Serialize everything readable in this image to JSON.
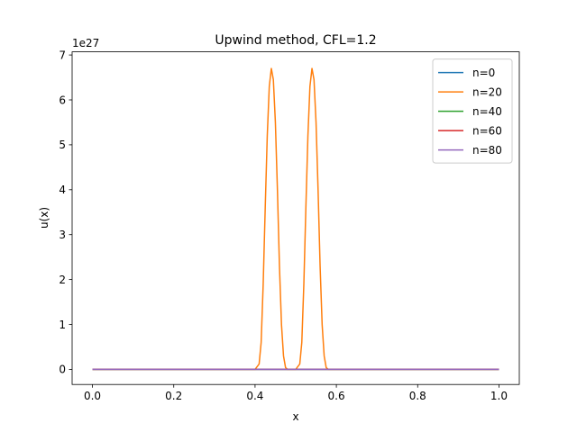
{
  "chart_data": {
    "type": "line",
    "title": "Upwind method, CFL=1.2",
    "xlabel": "x",
    "ylabel": "u(x)",
    "y_offset_label": "1e27",
    "y_scale_factor": 1e+27,
    "xlim": [
      -0.05,
      1.05
    ],
    "ylim": [
      -0.336,
      7.07
    ],
    "grid": false,
    "legend_position": "top-right",
    "x_ticks": [
      0.0,
      0.2,
      0.4,
      0.6,
      0.8,
      1.0
    ],
    "x_tick_labels": [
      "0.0",
      "0.2",
      "0.4",
      "0.6",
      "0.8",
      "1.0"
    ],
    "y_ticks": [
      0,
      1,
      2,
      3,
      4,
      5,
      6,
      7
    ],
    "y_tick_labels": [
      "0",
      "1",
      "2",
      "3",
      "4",
      "5",
      "6",
      "7"
    ],
    "series": [
      {
        "name": "n=0",
        "color": "#1f77b4",
        "points": [
          [
            0.0,
            0
          ],
          [
            1.0,
            0
          ]
        ]
      },
      {
        "name": "n=20",
        "color": "#ff7f0e",
        "points": [
          [
            0.0,
            0
          ],
          [
            0.4,
            0
          ],
          [
            0.41,
            0.12
          ],
          [
            0.415,
            0.6
          ],
          [
            0.42,
            1.9
          ],
          [
            0.425,
            3.6
          ],
          [
            0.43,
            5.2
          ],
          [
            0.435,
            6.3
          ],
          [
            0.44,
            6.7
          ],
          [
            0.445,
            6.45
          ],
          [
            0.45,
            5.5
          ],
          [
            0.455,
            4.0
          ],
          [
            0.46,
            2.3
          ],
          [
            0.465,
            1.0
          ],
          [
            0.47,
            0.3
          ],
          [
            0.475,
            0.04
          ],
          [
            0.48,
            0
          ],
          [
            0.5,
            0
          ],
          [
            0.51,
            0.12
          ],
          [
            0.515,
            0.6
          ],
          [
            0.52,
            1.9
          ],
          [
            0.525,
            3.6
          ],
          [
            0.53,
            5.2
          ],
          [
            0.535,
            6.3
          ],
          [
            0.54,
            6.7
          ],
          [
            0.545,
            6.45
          ],
          [
            0.55,
            5.5
          ],
          [
            0.555,
            4.0
          ],
          [
            0.56,
            2.3
          ],
          [
            0.565,
            1.0
          ],
          [
            0.57,
            0.3
          ],
          [
            0.575,
            0.04
          ],
          [
            0.58,
            0
          ],
          [
            1.0,
            0
          ]
        ]
      },
      {
        "name": "n=40",
        "color": "#2ca02c",
        "points": [
          [
            0.0,
            0
          ],
          [
            1.0,
            0
          ]
        ]
      },
      {
        "name": "n=60",
        "color": "#d62728",
        "points": [
          [
            0.0,
            0
          ],
          [
            1.0,
            0
          ]
        ]
      },
      {
        "name": "n=80",
        "color": "#9467bd",
        "points": [
          [
            0.0,
            0
          ],
          [
            1.0,
            0
          ]
        ]
      }
    ]
  }
}
